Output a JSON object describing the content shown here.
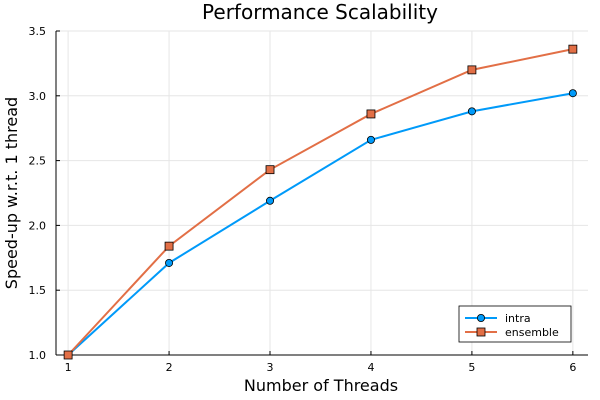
{
  "chart_data": {
    "type": "line",
    "title": "Performance Scalability",
    "xlabel": "Number of Threads",
    "ylabel": "Speed-up w.r.t. 1 thread",
    "x": [
      1,
      2,
      3,
      4,
      5,
      6
    ],
    "xticks": [
      "1",
      "2",
      "3",
      "4",
      "5",
      "6"
    ],
    "xlim": [
      0.88,
      6.15
    ],
    "ylim": [
      1.0,
      3.5
    ],
    "yticks": [
      "1.0",
      "1.5",
      "2.0",
      "2.5",
      "3.0",
      "3.5"
    ],
    "grid": true,
    "legend_position": "bottom-right",
    "series": [
      {
        "name": "intra",
        "values": [
          1.0,
          1.71,
          2.19,
          2.66,
          2.88,
          3.02
        ],
        "color": "#009AF9",
        "marker": "circle"
      },
      {
        "name": "ensemble",
        "values": [
          1.0,
          1.84,
          2.43,
          2.86,
          3.2,
          3.36
        ],
        "color": "#E26F46",
        "marker": "square"
      }
    ]
  }
}
